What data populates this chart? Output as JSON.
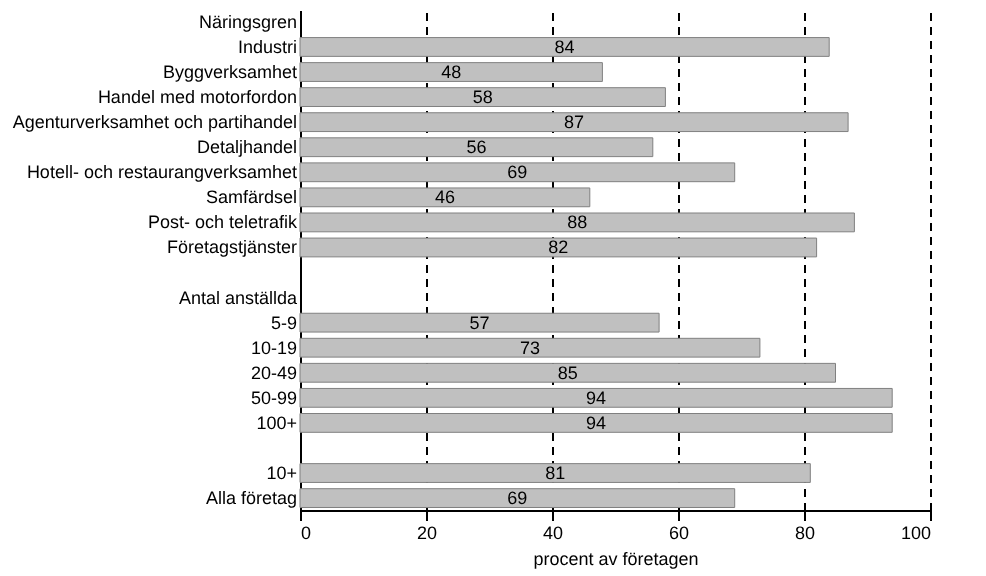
{
  "chart_data": {
    "type": "bar",
    "orientation": "horizontal",
    "xlabel": "procent av företagen",
    "categories": [
      "Näringsgren",
      "Industri",
      "Byggverksamhet",
      "Handel med motorfordon",
      "Agenturverksamhet och partihandel",
      "Detaljhandel",
      "Hotell- och restaurangverksamhet",
      "Samfärdsel",
      "Post- och teletrafik",
      "Företagstjänster",
      null,
      "Antal anställda",
      "5-9",
      "10-19",
      "20-49",
      "50-99",
      "100+",
      null,
      "10+",
      "Alla företag"
    ],
    "values": [
      null,
      84,
      48,
      58,
      87,
      56,
      69,
      46,
      88,
      82,
      null,
      null,
      57,
      73,
      85,
      94,
      94,
      null,
      81,
      69
    ],
    "color": "#c0c0c0",
    "data_labels": true,
    "xlim": [
      0,
      100
    ],
    "xticks": [
      0,
      20,
      40,
      60,
      80,
      100
    ],
    "grid": "x"
  }
}
